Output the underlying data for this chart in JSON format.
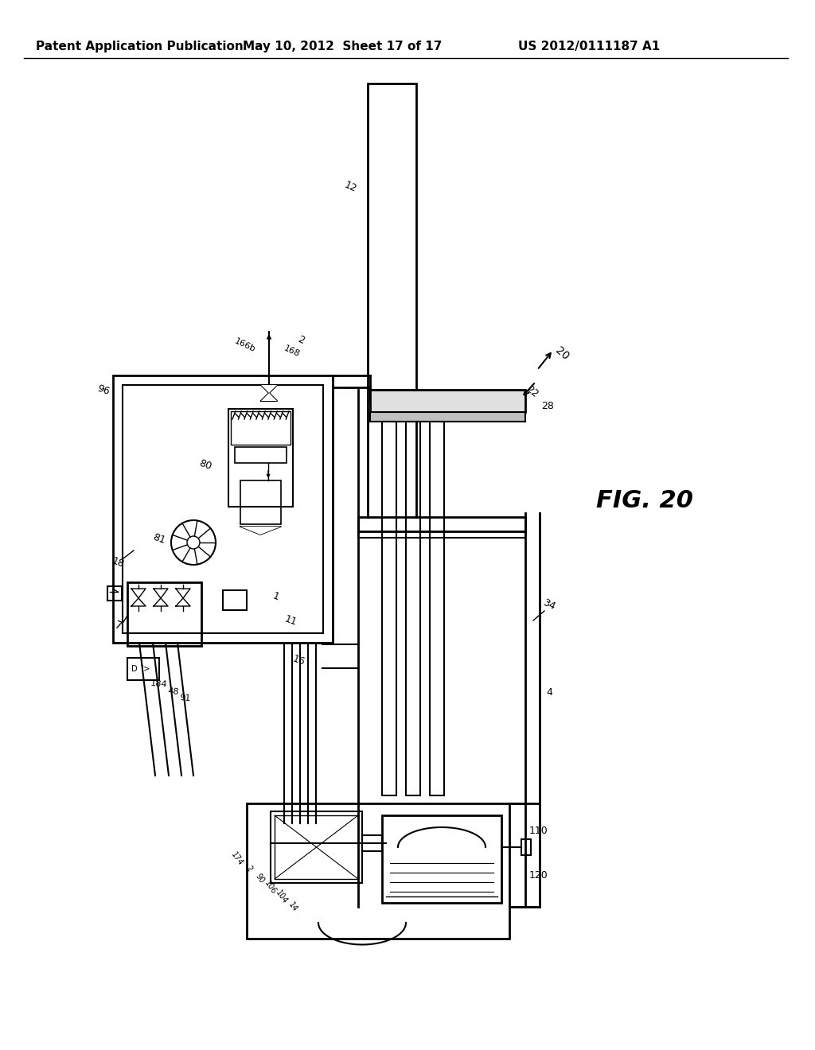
{
  "bg_color": "#ffffff",
  "header_left": "Patent Application Publication",
  "header_mid": "May 10, 2012  Sheet 17 of 17",
  "header_right": "US 2012/0111187 A1",
  "fig_label": "FIG. 20",
  "header_fontsize": 11,
  "fig_label_fontsize": 22
}
